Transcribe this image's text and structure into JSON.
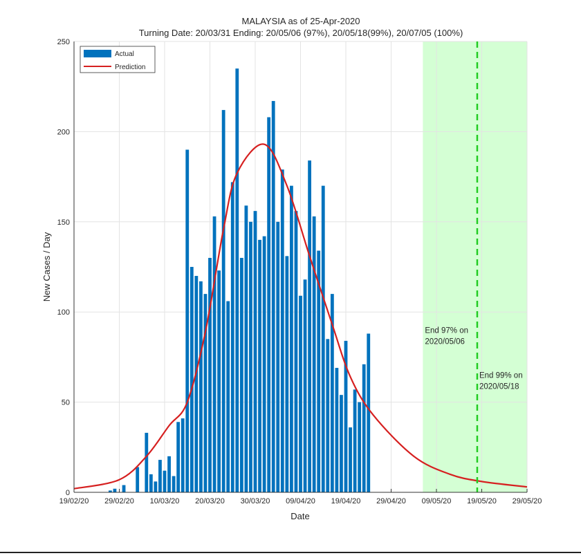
{
  "chart_data": {
    "type": "bar",
    "title": "MALAYSIA as of 25-Apr-2020",
    "subtitle": "Turning Date: 20/03/31  Ending: 20/05/06 (97%), 20/05/18(99%), 20/07/05 (100%)",
    "xlabel": "Date",
    "ylabel": "New Cases / Day",
    "xlim": [
      "2020-02-19",
      "2020-05-29"
    ],
    "ylim": [
      0,
      250
    ],
    "yticks": [
      0,
      50,
      100,
      150,
      200,
      250
    ],
    "xticks": [
      {
        "date": "2020-02-19",
        "label": "19/02/20"
      },
      {
        "date": "2020-02-29",
        "label": "29/02/20"
      },
      {
        "date": "2020-03-10",
        "label": "10/03/20"
      },
      {
        "date": "2020-03-20",
        "label": "20/03/20"
      },
      {
        "date": "2020-03-30",
        "label": "30/03/20"
      },
      {
        "date": "2020-04-09",
        "label": "09/04/20"
      },
      {
        "date": "2020-04-19",
        "label": "19/04/20"
      },
      {
        "date": "2020-04-29",
        "label": "29/04/20"
      },
      {
        "date": "2020-05-09",
        "label": "09/05/20"
      },
      {
        "date": "2020-05-19",
        "label": "19/05/20"
      },
      {
        "date": "2020-05-29",
        "label": "29/05/20"
      }
    ],
    "grid": true,
    "legend_position": "top-left",
    "series": [
      {
        "name": "Actual",
        "type": "bar",
        "color": "#0072BD",
        "x": [
          "2020-02-27",
          "2020-02-28",
          "2020-03-01",
          "2020-03-04",
          "2020-03-06",
          "2020-03-07",
          "2020-03-08",
          "2020-03-09",
          "2020-03-10",
          "2020-03-11",
          "2020-03-12",
          "2020-03-13",
          "2020-03-14",
          "2020-03-15",
          "2020-03-16",
          "2020-03-17",
          "2020-03-18",
          "2020-03-19",
          "2020-03-20",
          "2020-03-21",
          "2020-03-22",
          "2020-03-23",
          "2020-03-24",
          "2020-03-25",
          "2020-03-26",
          "2020-03-27",
          "2020-03-28",
          "2020-03-29",
          "2020-03-30",
          "2020-03-31",
          "2020-04-01",
          "2020-04-02",
          "2020-04-03",
          "2020-04-04",
          "2020-04-05",
          "2020-04-06",
          "2020-04-07",
          "2020-04-08",
          "2020-04-09",
          "2020-04-10",
          "2020-04-11",
          "2020-04-12",
          "2020-04-13",
          "2020-04-14",
          "2020-04-15",
          "2020-04-16",
          "2020-04-17",
          "2020-04-18",
          "2020-04-19",
          "2020-04-20",
          "2020-04-21",
          "2020-04-22",
          "2020-04-23",
          "2020-04-24"
        ],
        "values": [
          1,
          2,
          4,
          14,
          33,
          10,
          6,
          18,
          12,
          20,
          9,
          39,
          41,
          190,
          125,
          120,
          117,
          110,
          130,
          153,
          123,
          212,
          106,
          172,
          235,
          130,
          159,
          150,
          156,
          140,
          142,
          208,
          217,
          150,
          179,
          131,
          170,
          156,
          109,
          118,
          184,
          153,
          134,
          170,
          85,
          110,
          69,
          54,
          84,
          36,
          57,
          50,
          71,
          88
        ]
      },
      {
        "name": "Prediction",
        "type": "line",
        "color": "#D62020",
        "x": [
          "2020-02-19",
          "2020-02-29",
          "2020-03-06",
          "2020-03-11",
          "2020-03-15",
          "2020-03-19",
          "2020-03-23",
          "2020-03-26",
          "2020-04-01",
          "2020-04-06",
          "2020-04-11",
          "2020-04-16",
          "2020-04-20",
          "2020-04-25",
          "2020-05-04",
          "2020-05-12",
          "2020-05-19",
          "2020-05-29"
        ],
        "values": [
          2,
          7,
          20,
          37,
          50,
          89,
          146,
          177,
          193,
          170,
          131,
          93,
          64,
          43,
          20,
          10,
          6,
          3
        ]
      }
    ],
    "shaded_region": {
      "from": "2020-05-06",
      "to": "2020-05-29",
      "color": "#CCFFCC"
    },
    "vertical_line": {
      "date": "2020-05-18",
      "color": "#22CC22",
      "style": "dashed"
    },
    "annotations": [
      {
        "date": "2020-05-06",
        "value": 90,
        "lines": [
          "End 97% on",
          "2020/05/06"
        ]
      },
      {
        "date": "2020-05-18",
        "value": 65,
        "lines": [
          "End 99% on",
          "2020/05/18"
        ]
      }
    ]
  }
}
